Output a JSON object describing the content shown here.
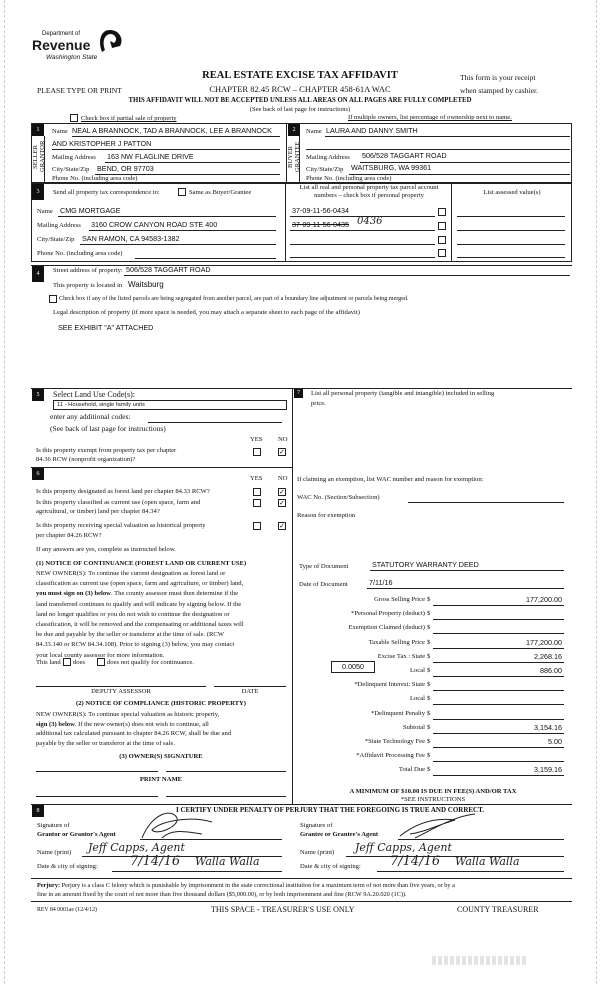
{
  "header": {
    "logo": {
      "line1": "Department of",
      "line2": "Revenue",
      "line3": "Washington State"
    },
    "please_type": "PLEASE TYPE OR PRINT",
    "title": "REAL ESTATE EXCISE TAX AFFIDAVIT",
    "chapter": "CHAPTER 82.45 RCW – CHAPTER 458-61A WAC",
    "receipt_1": "This form is your receipt",
    "receipt_2": "when stamped by cashier.",
    "warning": "THIS AFFIDAVIT WILL NOT BE ACCEPTED UNLESS ALL AREAS ON ALL PAGES ARE FULLY COMPLETED",
    "see_back": "(See back of last page for instructions)",
    "partial_sale_label": "Check box if partial sale of property",
    "partial_sale_checked": false,
    "multiple_owners": "If multiple owners, list percentage of ownership next to name."
  },
  "seller": {
    "num": "1",
    "side_label_1": "SELLER",
    "side_label_2": "GRANTOR",
    "name_label": "Name",
    "name_1": "NEAL A BRANNOCK, TAD A BRANNOCK, LEE A BRANNOCK",
    "name_2": "AND KRISTOPHER J PATTON",
    "mailing_label": "Mailing Address",
    "mailing": "163 NW FLAGLINE DRIVE",
    "city_label": "City/State/Zip",
    "city": "BEND, OR  97703",
    "phone_label": "Phone No. (including area code)",
    "phone": ""
  },
  "buyer": {
    "num": "2",
    "side_label_1": "BUYER",
    "side_label_2": "GRANTEE",
    "name_label": "Name",
    "name_1": "LAURA AND DANNY SMITH",
    "mailing_label": "Mailing Address",
    "mailing": "506/528 TAGGART ROAD",
    "city_label": "City/State/Zip",
    "city": "WAITSBURG, WA  99361",
    "phone_label": "Phone No. (including area code)",
    "phone": ""
  },
  "correspondence": {
    "num": "3",
    "label": "Send all property tax correspondence to:",
    "same_as_label": "Same as Buyer/Grantee",
    "same_as_checked": false,
    "name_label": "Name",
    "name": "CMG MORTGAGE",
    "mailing_label": "Mailing Address",
    "mailing": "3160 CROW CANYON ROAD STE 400",
    "city_label": "City/State/Zip",
    "city": "SAN RAMON, CA  94583-1382",
    "phone_label": "Phone No. (including area code)",
    "parcels_header": "List all real and personal property tax parcel account numbers – check box if personal property",
    "assessed_header": "List assessed value(s)",
    "parcels": [
      {
        "number": "37-09-11-56-0434",
        "handwritten": "",
        "personal": false
      },
      {
        "number": "37-09-11-56-0435",
        "handwritten": "0436",
        "personal": false
      },
      {
        "number": "",
        "handwritten": "",
        "personal": false
      },
      {
        "number": "",
        "handwritten": "",
        "personal": false
      }
    ]
  },
  "property": {
    "num": "4",
    "street_label": "Street address of property:",
    "street": "506/528 TAGGART ROAD",
    "located_label": "This property is located in",
    "located": "Waitsburg",
    "segregated_label": "Check box if any of the listed parcels are being segregated from another parcel, are part of a boundary line adjustment or parcels being merged.",
    "segregated_checked": false,
    "legal_label": "Legal description of property (if more space is needed, you may attach a separate sheet to each page of the affidavit)",
    "legal": "SEE EXHIBIT \"A\" ATTACHED"
  },
  "land_use": {
    "num": "5",
    "label": "Select Land Use Code(s):",
    "selected": "11 - Household, single family units",
    "additional_label": "enter any additional codes:",
    "see_back": "(See back of last page for instructions)",
    "yes": "YES",
    "no": "NO",
    "exempt_q": [
      "Is this property exempt from property tax per chapter",
      "84.36 RCW (nonprofit organization)?"
    ],
    "exempt_answer": "no"
  },
  "section6": {
    "num": "6",
    "yes": "YES",
    "no": "NO",
    "questions": [
      {
        "text": [
          "Is this property designated as forest land per chapter 84.33 RCW?"
        ],
        "answer": "no"
      },
      {
        "text": [
          "Is this property classified as current use (open space, farm and",
          "agricultural, or timber) land per chapter 84.34?"
        ],
        "answer": "no"
      },
      {
        "text": [
          "Is this property receiving special valuation as historical property",
          "per chapter 84.26 RCW?"
        ],
        "answer": "no"
      }
    ],
    "if_yes": "If any answers are yes, complete as instructed below.",
    "notice1_title": "(1) NOTICE OF CONTINUANCE  (FOREST LAND OR CURRENT USE)",
    "notice1_lines": [
      "NEW OWNER(S): To continue the current designation as forest land or",
      "classification as current use (open space, farm and agriculture, or timber) land,",
      "you must sign on (3) below. The county assessor must then determine if the",
      "land transferred continues to qualify and will indicate by signing below. If the",
      "land no longer qualifies or you do not wish to continue the designation or",
      "classification, it will be removed and the compensating or additional taxes will",
      "be due and payable by the seller or transferor at the time of sale. (RCW",
      "84.33.140 or RCW 84.34.108). Prior to signing (3) below, you may contact",
      "your local county assessor for more information."
    ],
    "this_land": "This land",
    "does": "does",
    "does_not": "does not qualify for continuance.",
    "deputy": "DEPUTY ASSESSOR",
    "date": "DATE",
    "notice2_title": "(2) NOTICE OF COMPLIANCE (HISTORIC PROPERTY)",
    "notice2_lines": [
      "NEW OWNER(S): To continue special valuation as historic property,",
      "sign (3) below. If the new owner(s) does not wish to continue, all",
      "additional tax calculated pursuant to chapter 84.26 RCW, shall be due and",
      "payable by the seller or transferor at the time of sale."
    ],
    "owner_sig": "(3)  OWNER(S) SIGNATURE",
    "print_name": "PRINT NAME"
  },
  "section7": {
    "num": "7",
    "personal_label": "List all  personal property (tangible and intangible) included in selling",
    "personal_label_2": "price.",
    "exemption_label": "If claiming an exemption, list WAC number and reason for exemption:",
    "wac_label": "WAC No. (Section/Subsection)",
    "reason_label": "Reason for exemption",
    "doc_type_label": "Type of Document",
    "doc_type": "STATUTORY WARRANTY DEED",
    "doc_date_label": "Date of Document",
    "doc_date": "7/11/16",
    "local_rate": "0.0050",
    "amounts": [
      {
        "label": "Gross Selling Price",
        "value": "177,200.00"
      },
      {
        "label": "*Personal Property (deduct)",
        "value": ""
      },
      {
        "label": "Exemption Claimed (deduct)",
        "value": ""
      },
      {
        "label": "Taxable Selling Price",
        "value": "177,200.00"
      },
      {
        "label": "Excise Tax : State",
        "value": "2,268.16"
      },
      {
        "label": "Local",
        "value": "886.00"
      },
      {
        "label": "*Delinquent Interest: State",
        "value": ""
      },
      {
        "label": "Local",
        "value": ""
      },
      {
        "label": "*Delinquent Penalty",
        "value": ""
      },
      {
        "label": "Subtotal",
        "value": "3,154.16"
      },
      {
        "label": "*State Technology Fee",
        "value": "5.00"
      },
      {
        "label": "*Affidavit Processing Fee",
        "value": ""
      },
      {
        "label": "Total Due",
        "value": "3,159.16"
      }
    ],
    "currency": "$",
    "minimum": "A MINIMUM OF $10.00 IS DUE IN FEE(S) AND/OR TAX",
    "see_instructions": "*SEE INSTRUCTIONS"
  },
  "certify": {
    "num": "8",
    "statement": "I CERTIFY UNDER PENALTY OF PERJURY THAT THE FOREGOING IS TRUE AND CORRECT.",
    "grantor_sig_1": "Signature of",
    "grantor_sig_2": "Grantor or Grantor's Agent",
    "grantee_sig_1": "Signature of",
    "grantee_sig_2": "Grantee or Grantee's Agent",
    "name_label": "Name (print)",
    "date_label": "Date & city of signing:",
    "grantor_name": "Jeff Capps, Agent",
    "grantor_date": "7/14/16",
    "grantor_city": "Walla Walla",
    "grantee_name": "Jeff Capps, Agent",
    "grantee_date": "7/14/16",
    "grantee_city": "Walla Walla"
  },
  "footer": {
    "perjury_bold": "Perjury:",
    "perjury_1": "Perjury is a class C felony which is punishable by imprisonment in the state correctional institution for a maximum term of not more than five years, or by a",
    "perjury_2": "fine in an amount fixed by the court of not more than five thousand dollars ($5,000.00), or by both imprisonment and fine (RCW 9A.20.020 (1C)).",
    "rev": "REV 84 0001ae (12/4/12)",
    "treasurer_use": "THIS SPACE - TREASURER'S USE ONLY",
    "county_treasurer": "COUNTY TREASURER"
  }
}
